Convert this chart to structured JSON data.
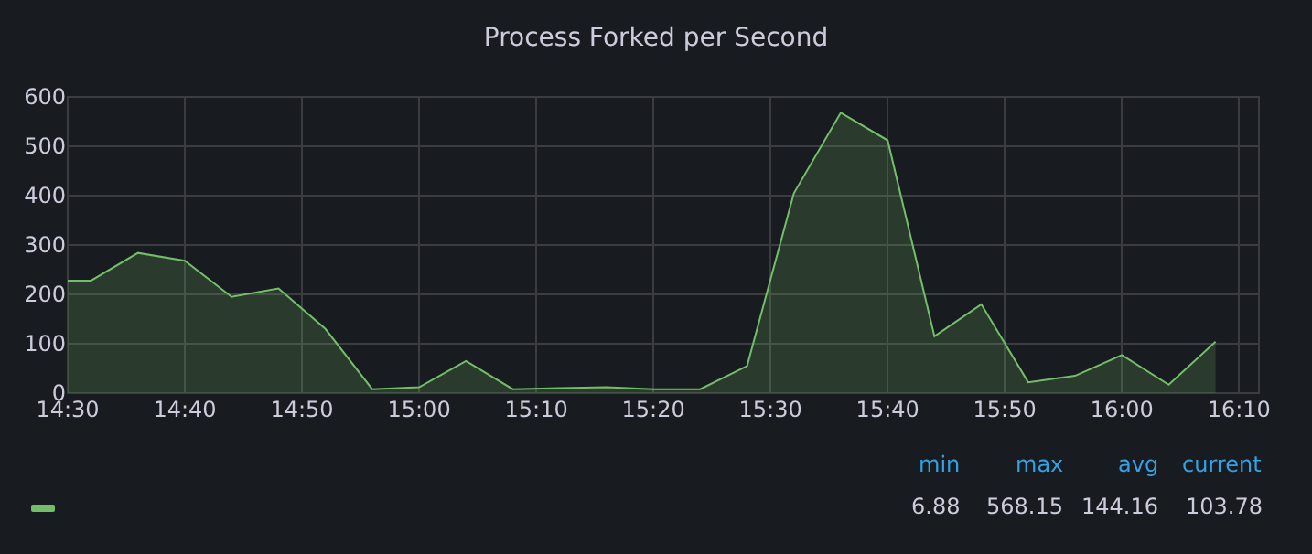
{
  "chart_data": {
    "type": "area",
    "title": "Process Forked per Second",
    "x": [
      14.5,
      14.5333,
      14.6,
      14.6667,
      14.7333,
      14.8,
      14.8667,
      14.9333,
      15,
      15.0667,
      15.1333,
      15.2,
      15.2667,
      15.3333,
      15.4,
      15.4667,
      15.5333,
      15.6,
      15.6667,
      15.7333,
      15.8,
      15.8667,
      15.9333,
      16,
      16.0667,
      16.1333
    ],
    "series": [
      {
        "color": "#73bf69",
        "values": [
          228,
          228,
          284,
          268,
          195,
          212,
          130,
          8,
          12,
          65,
          8,
          10,
          12,
          8,
          8,
          55,
          405,
          568,
          512,
          115,
          180,
          22,
          35,
          77,
          17,
          104
        ]
      }
    ],
    "xlim": [
      14.5,
      16.195
    ],
    "xticks": [
      {
        "value": 14.5,
        "label": "14:30"
      },
      {
        "value": 14.6667,
        "label": "14:40"
      },
      {
        "value": 14.8333,
        "label": "14:50"
      },
      {
        "value": 15,
        "label": "15:00"
      },
      {
        "value": 15.1667,
        "label": "15:10"
      },
      {
        "value": 15.3333,
        "label": "15:20"
      },
      {
        "value": 15.5,
        "label": "15:30"
      },
      {
        "value": 15.6667,
        "label": "15:40"
      },
      {
        "value": 15.8333,
        "label": "15:50"
      },
      {
        "value": 16,
        "label": "16:00"
      },
      {
        "value": 16.1667,
        "label": "16:10"
      }
    ],
    "ylim": [
      0,
      600
    ],
    "yticks": [
      0,
      100,
      200,
      300,
      400,
      500,
      600
    ],
    "grid": true,
    "annotations": [
      "min",
      "max",
      "avg",
      "current",
      "6.88",
      "568.15",
      "144.16",
      "103.78"
    ]
  }
}
